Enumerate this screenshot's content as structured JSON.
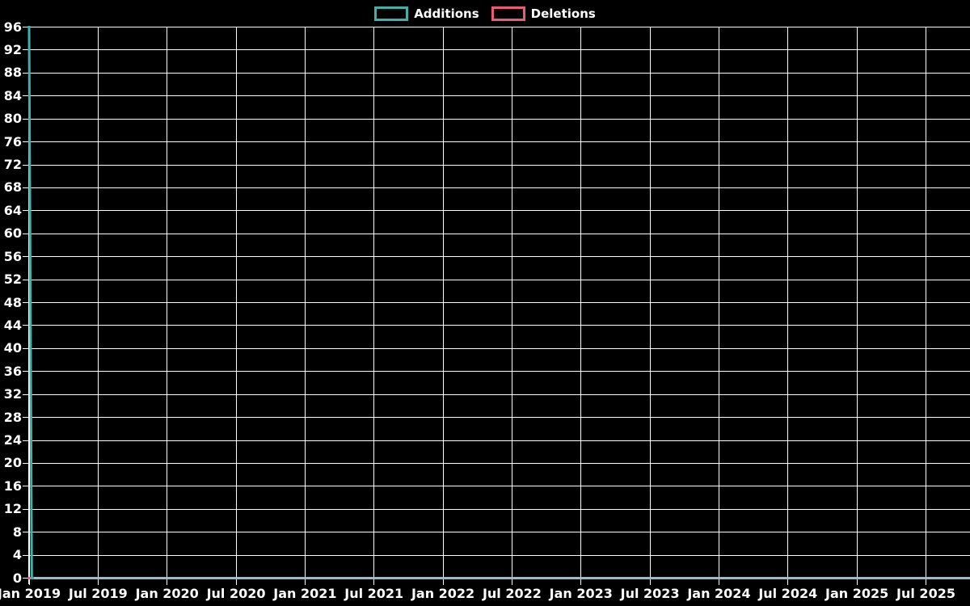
{
  "chart_data": {
    "type": "line",
    "background_color": "#000000",
    "grid_color": "#ffffff",
    "text_color": "#ffffff",
    "zero_overlap_line_color": "#9fbac3",
    "legend": {
      "position": "top-center",
      "items": [
        {
          "label": "Additions",
          "color": "#41b0aa"
        },
        {
          "label": "Deletions",
          "color": "#ea5c76"
        }
      ]
    },
    "x_axis": {
      "tick_labels": [
        "Jan 2019",
        "Jul 2019",
        "Jan 2020",
        "Jul 2020",
        "Jan 2021",
        "Jul 2021",
        "Jan 2022",
        "Jul 2022",
        "Jan 2023",
        "Jul 2023",
        "Jan 2024",
        "Jul 2024",
        "Jan 2025",
        "Jul 2025"
      ],
      "tick_interval_months": 6
    },
    "y_axis": {
      "min": 0,
      "max": 96,
      "tick_step": 4,
      "tick_labels": [
        "0",
        "4",
        "8",
        "12",
        "16",
        "20",
        "24",
        "28",
        "32",
        "36",
        "40",
        "44",
        "48",
        "52",
        "56",
        "60",
        "64",
        "68",
        "72",
        "76",
        "80",
        "84",
        "88",
        "92",
        "96"
      ]
    },
    "series": [
      {
        "name": "Additions",
        "color": "#41b0aa",
        "points": [
          [
            "2019-01-01",
            96
          ],
          [
            "2019-01-08",
            0
          ],
          [
            "2025-10-26",
            0
          ]
        ]
      },
      {
        "name": "Deletions",
        "color": "#ea5c76",
        "points": [
          [
            "2019-01-01",
            0
          ],
          [
            "2025-10-26",
            0
          ]
        ]
      }
    ]
  }
}
